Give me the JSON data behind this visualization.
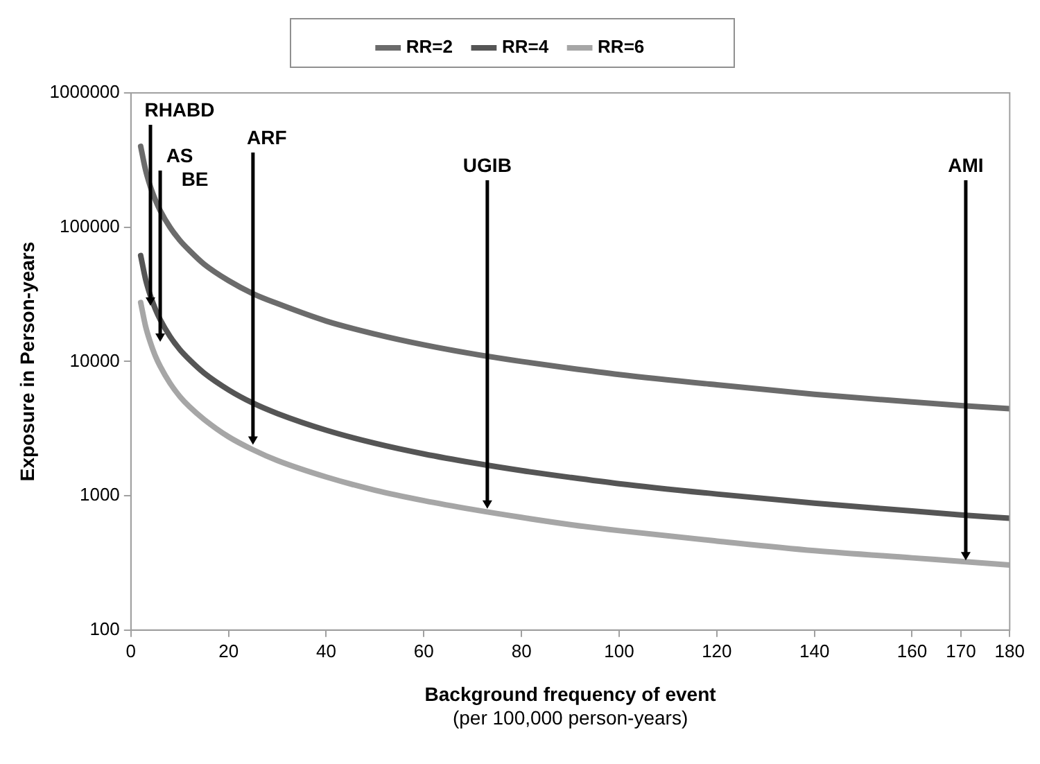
{
  "chart_data": {
    "type": "line",
    "xlabel": "Background frequency of event\n(per 100,000 person-years)",
    "ylabel": "Exposure in Person-years",
    "x": [
      2,
      3,
      4,
      5,
      6,
      8,
      10,
      12,
      15,
      20,
      25,
      30,
      40,
      50,
      60,
      70,
      80,
      90,
      100,
      120,
      140,
      160,
      170,
      180
    ],
    "series": [
      {
        "name": "RR=2",
        "color": "#6b6b6b",
        "values": [
          400000,
          267000,
          200000,
          160000,
          133000,
          100000,
          80000,
          67000,
          53000,
          40000,
          32000,
          27000,
          20000,
          16000,
          13300,
          11400,
          10000,
          8900,
          8000,
          6700,
          5700,
          5000,
          4700,
          4450
        ]
      },
      {
        "name": "RR=4",
        "color": "#555555",
        "values": [
          61500,
          41000,
          30800,
          24600,
          20500,
          15400,
          12300,
          10300,
          8200,
          6150,
          4900,
          4100,
          3080,
          2460,
          2050,
          1760,
          1540,
          1370,
          1230,
          1030,
          880,
          770,
          720,
          680
        ]
      },
      {
        "name": "RR=6",
        "color": "#a6a6a6",
        "values": [
          27500,
          18300,
          13800,
          11000,
          9200,
          6900,
          5500,
          4600,
          3700,
          2750,
          2200,
          1830,
          1380,
          1100,
          920,
          790,
          690,
          610,
          550,
          460,
          390,
          345,
          325,
          305
        ]
      }
    ],
    "xlim": [
      0,
      180
    ],
    "xticks": [
      0,
      20,
      40,
      60,
      80,
      100,
      120,
      140,
      160,
      170,
      180
    ],
    "ylim": [
      100,
      1000000
    ],
    "yticks": [
      100,
      1000,
      10000,
      100000,
      1000000
    ],
    "log": "y",
    "grid": false,
    "legend": "top",
    "marker": "none",
    "annotations": [
      {
        "text": "RHABD",
        "x": 4,
        "y": 26000
      },
      {
        "text": "AS",
        "x": 6,
        "y": 14000
      },
      {
        "text": "BE",
        "x": 6,
        "y": 14000
      },
      {
        "text": "ARF",
        "x": 25,
        "y": 2400
      },
      {
        "text": "UGIB",
        "x": 73,
        "y": 800
      },
      {
        "text": "AMI",
        "x": 171,
        "y": 330
      }
    ]
  }
}
